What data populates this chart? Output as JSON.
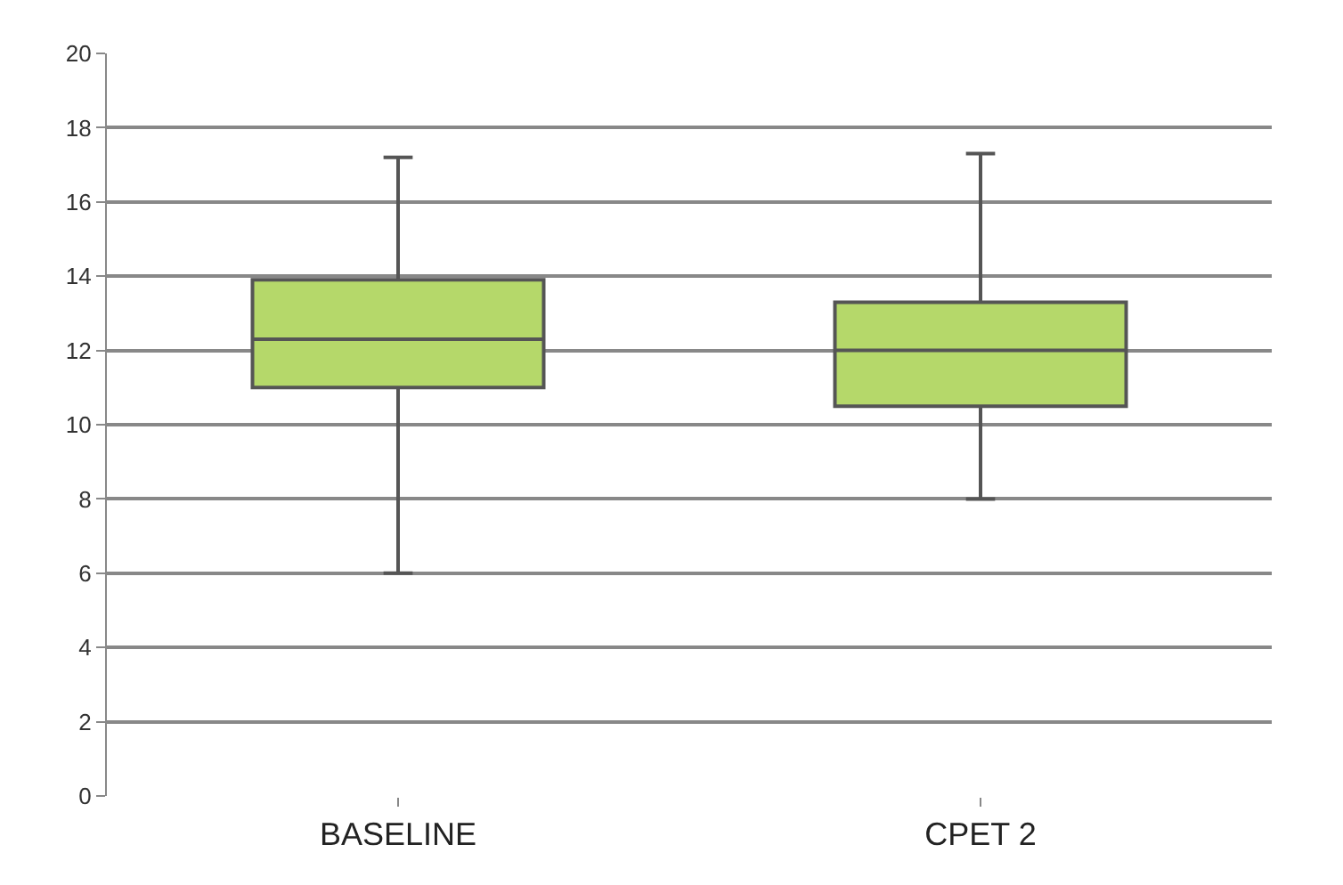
{
  "chart_data": {
    "type": "box",
    "categories": [
      "BASELINE",
      "CPET 2"
    ],
    "boxes": [
      {
        "low": 6,
        "q1": 11.0,
        "median": 12.3,
        "q3": 13.9,
        "high": 17.2
      },
      {
        "low": 8,
        "q1": 10.5,
        "median": 12.0,
        "q3": 13.3,
        "high": 17.3
      }
    ],
    "color": "#b5d86a",
    "ylim": [
      0,
      20
    ],
    "yticks": [
      0,
      2,
      4,
      6,
      8,
      10,
      12,
      14,
      16,
      18,
      20
    ],
    "grid": "y",
    "legend": false
  }
}
